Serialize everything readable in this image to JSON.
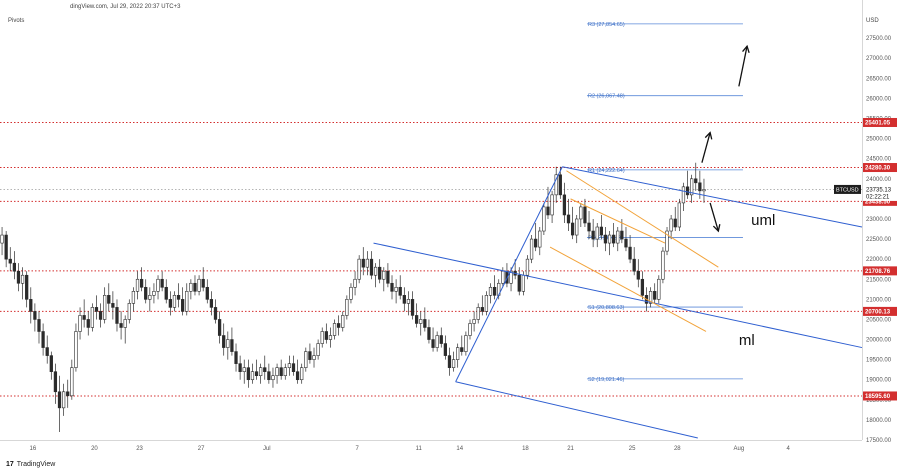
{
  "header": {
    "source": "dingView.com, Jul 29, 2022 20:37 UTC+3",
    "indicator": "Pivots",
    "currency": "USD"
  },
  "brand": {
    "logo": "17",
    "label": "TradingView"
  },
  "chart_data": {
    "type": "candlestick",
    "symbol": "BTCUSD",
    "last_price": "23735.13",
    "countdown": "02:22:21",
    "ylim": [
      17500,
      28250
    ],
    "y_ticks": [
      17500,
      18000,
      18500,
      19000,
      19500,
      20000,
      20500,
      21000,
      21500,
      22000,
      22500,
      23000,
      23500,
      24000,
      24500,
      25000,
      25500,
      26000,
      26500,
      27000,
      27500
    ],
    "y_tick_labels": [
      "17500.00",
      "18000.00",
      "18500.00",
      "19000.00",
      "19500.00",
      "20000.00",
      "20500.00",
      "21000.00",
      "21500.00",
      "22000.00",
      "22500.00",
      "23000.00",
      "23500.00",
      "24000.00",
      "24500.00",
      "25000.00",
      "25500.00",
      "26000.00",
      "26500.00",
      "27000.00",
      "27500.00"
    ],
    "xlim": [
      0,
      210
    ],
    "x_ticks": [
      {
        "i": 8,
        "label": "16"
      },
      {
        "i": 23,
        "label": "20"
      },
      {
        "i": 34,
        "label": "23"
      },
      {
        "i": 49,
        "label": "27"
      },
      {
        "i": 65,
        "label": "Jul"
      },
      {
        "i": 87,
        "label": "7"
      },
      {
        "i": 102,
        "label": "11"
      },
      {
        "i": 112,
        "label": "14"
      },
      {
        "i": 128,
        "label": "18"
      },
      {
        "i": 139,
        "label": "21"
      },
      {
        "i": 154,
        "label": "25"
      },
      {
        "i": 165,
        "label": "28"
      },
      {
        "i": 180,
        "label": "Aug"
      },
      {
        "i": 192,
        "label": "4"
      }
    ],
    "levels": [
      {
        "value": 25401.05,
        "label": "25401.05"
      },
      {
        "value": 24280.3,
        "label": "24280.30"
      },
      {
        "value": 23438.5,
        "label": "23438.50"
      },
      {
        "value": 21708.76,
        "label": "21708.76"
      },
      {
        "value": 20700.13,
        "label": "20700.13"
      },
      {
        "value": 18595.6,
        "label": "18595.60"
      }
    ],
    "pivots": [
      {
        "name": "R3",
        "label": "R3 (27,854.65)",
        "value": 27854.65
      },
      {
        "name": "R2",
        "label": "R2 (26,067.48)",
        "value": 26067.48
      },
      {
        "name": "R1",
        "label": "R1 (24,222.64)",
        "value": 24222.64
      },
      {
        "name": "P",
        "label": "P (22,540.19)",
        "value": 22540.19
      },
      {
        "name": "S1",
        "label": "S1 (20,808.63)",
        "value": 20808.63
      },
      {
        "name": "S2",
        "label": "S2 (19,021.46)",
        "value": 19021.46
      }
    ],
    "pivot_range": [
      143,
      181
    ],
    "pitchfork_blue": {
      "median": [
        [
          91,
          22400
        ],
        [
          210,
          19800
        ]
      ],
      "upper": [
        [
          137,
          24300
        ],
        [
          210,
          22800
        ]
      ],
      "lower": [
        [
          111,
          18950
        ],
        [
          170,
          17550
        ]
      ],
      "handle": [
        [
          111,
          18950
        ],
        [
          137,
          24300
        ]
      ]
    },
    "pitchfork_orange": {
      "upper": [
        [
          138,
          24200
        ],
        [
          175,
          21800
        ]
      ],
      "median": [
        [
          134,
          22300
        ],
        [
          172,
          20200
        ]
      ],
      "lower": [
        [
          139,
          23500
        ],
        [
          162,
          22400
        ]
      ]
    },
    "annotations": [
      {
        "text": "uml",
        "x": 183,
        "y": 22850
      },
      {
        "text": "ml",
        "x": 180,
        "y": 19870
      }
    ],
    "arrows": [
      {
        "from": [
          180,
          26300
        ],
        "to": [
          182,
          27300
        ]
      },
      {
        "from": [
          171,
          24400
        ],
        "to": [
          173,
          25150
        ]
      },
      {
        "from": [
          173,
          23400
        ],
        "to": [
          175,
          22700
        ]
      }
    ],
    "candles": [
      [
        22400,
        22800,
        22100,
        22600
      ],
      [
        22600,
        22700,
        21800,
        22000
      ],
      [
        22000,
        22300,
        21700,
        21900
      ],
      [
        21900,
        22200,
        21500,
        21700
      ],
      [
        21700,
        21900,
        21200,
        21400
      ],
      [
        21400,
        21800,
        21000,
        21600
      ],
      [
        21600,
        21700,
        20800,
        21000
      ],
      [
        21000,
        21300,
        20400,
        20700
      ],
      [
        20700,
        20900,
        20200,
        20500
      ],
      [
        20500,
        20700,
        19900,
        20200
      ],
      [
        20200,
        20400,
        19600,
        19800
      ],
      [
        19800,
        20100,
        19400,
        19600
      ],
      [
        19600,
        19700,
        19000,
        19200
      ],
      [
        19200,
        19400,
        18400,
        18700
      ],
      [
        18700,
        19100,
        17700,
        18300
      ],
      [
        18300,
        18900,
        18100,
        18700
      ],
      [
        18700,
        19000,
        18300,
        18600
      ],
      [
        18600,
        19500,
        18500,
        19300
      ],
      [
        19300,
        20400,
        19200,
        20200
      ],
      [
        20200,
        20800,
        20000,
        20600
      ],
      [
        20600,
        21000,
        20300,
        20500
      ],
      [
        20500,
        20700,
        20100,
        20300
      ],
      [
        20300,
        20900,
        20200,
        20800
      ],
      [
        20800,
        21100,
        20500,
        20700
      ],
      [
        20700,
        20900,
        20300,
        20500
      ],
      [
        20500,
        21300,
        20400,
        21100
      ],
      [
        21100,
        21400,
        20700,
        20900
      ],
      [
        20900,
        21200,
        20500,
        20800
      ],
      [
        20800,
        21000,
        20200,
        20400
      ],
      [
        20400,
        20700,
        20000,
        20300
      ],
      [
        20300,
        20600,
        19900,
        20500
      ],
      [
        20500,
        21000,
        20400,
        20900
      ],
      [
        20900,
        21300,
        20700,
        21200
      ],
      [
        21200,
        21700,
        21000,
        21500
      ],
      [
        21500,
        21800,
        21200,
        21300
      ],
      [
        21300,
        21500,
        20900,
        21000
      ],
      [
        21000,
        21300,
        20700,
        21100
      ],
      [
        21100,
        21400,
        20900,
        21200
      ],
      [
        21200,
        21600,
        21000,
        21500
      ],
      [
        21500,
        21700,
        21200,
        21300
      ],
      [
        21300,
        21500,
        20900,
        21000
      ],
      [
        21000,
        21200,
        20600,
        20800
      ],
      [
        20800,
        21200,
        20700,
        21100
      ],
      [
        21100,
        21400,
        20800,
        21000
      ],
      [
        21000,
        21300,
        20600,
        20700
      ],
      [
        20700,
        21400,
        20600,
        21200
      ],
      [
        21200,
        21500,
        21000,
        21400
      ],
      [
        21400,
        21600,
        21100,
        21200
      ],
      [
        21200,
        21600,
        21100,
        21500
      ],
      [
        21500,
        21800,
        21200,
        21300
      ],
      [
        21300,
        21500,
        20900,
        21000
      ],
      [
        21000,
        21200,
        20600,
        20800
      ],
      [
        20800,
        21000,
        20400,
        20500
      ],
      [
        20500,
        20700,
        19900,
        20100
      ],
      [
        20100,
        20400,
        19600,
        19800
      ],
      [
        19800,
        20200,
        19500,
        20000
      ],
      [
        20000,
        20300,
        19600,
        19700
      ],
      [
        19700,
        19900,
        19200,
        19400
      ],
      [
        19400,
        19600,
        19000,
        19200
      ],
      [
        19200,
        19500,
        18900,
        19300
      ],
      [
        19300,
        19500,
        18800,
        19000
      ],
      [
        19000,
        19400,
        18900,
        19200
      ],
      [
        19200,
        19500,
        19000,
        19100
      ],
      [
        19100,
        19400,
        18900,
        19300
      ],
      [
        19300,
        19600,
        19000,
        19200
      ],
      [
        19200,
        19400,
        18900,
        19000
      ],
      [
        19000,
        19300,
        18800,
        19100
      ],
      [
        19100,
        19400,
        18900,
        19300
      ],
      [
        19300,
        19500,
        19000,
        19100
      ],
      [
        19100,
        19400,
        19000,
        19300
      ],
      [
        19300,
        19600,
        19100,
        19400
      ],
      [
        19400,
        19600,
        19100,
        19200
      ],
      [
        19200,
        19500,
        18900,
        19000
      ],
      [
        19000,
        19400,
        18900,
        19300
      ],
      [
        19300,
        19800,
        19200,
        19700
      ],
      [
        19700,
        19900,
        19400,
        19500
      ],
      [
        19500,
        19800,
        19300,
        19600
      ],
      [
        19600,
        20000,
        19500,
        19900
      ],
      [
        19900,
        20300,
        19800,
        20200
      ],
      [
        20200,
        20400,
        19900,
        20000
      ],
      [
        20000,
        20300,
        19800,
        20100
      ],
      [
        20100,
        20500,
        20000,
        20400
      ],
      [
        20400,
        20600,
        20100,
        20300
      ],
      [
        20300,
        20700,
        20200,
        20600
      ],
      [
        20600,
        21100,
        20500,
        21000
      ],
      [
        21000,
        21400,
        20900,
        21300
      ],
      [
        21300,
        21700,
        21100,
        21500
      ],
      [
        21500,
        22100,
        21400,
        22000
      ],
      [
        22000,
        22300,
        21600,
        21800
      ],
      [
        21800,
        22200,
        21600,
        22000
      ],
      [
        22000,
        22200,
        21500,
        21600
      ],
      [
        21600,
        21900,
        21300,
        21800
      ],
      [
        21800,
        22000,
        21400,
        21500
      ],
      [
        21500,
        21800,
        21200,
        21700
      ],
      [
        21700,
        21900,
        21300,
        21400
      ],
      [
        21400,
        21600,
        21000,
        21200
      ],
      [
        21200,
        21500,
        20900,
        21300
      ],
      [
        21300,
        21600,
        21000,
        21100
      ],
      [
        21100,
        21300,
        20700,
        20900
      ],
      [
        20900,
        21200,
        20600,
        21000
      ],
      [
        21000,
        21200,
        20500,
        20600
      ],
      [
        20600,
        20900,
        20300,
        20400
      ],
      [
        20400,
        20700,
        20100,
        20500
      ],
      [
        20500,
        20800,
        20200,
        20300
      ],
      [
        20300,
        20500,
        19900,
        20000
      ],
      [
        20000,
        20300,
        19700,
        19800
      ],
      [
        19800,
        20200,
        19700,
        20100
      ],
      [
        20100,
        20300,
        19800,
        19900
      ],
      [
        19900,
        20100,
        19500,
        19600
      ],
      [
        19600,
        19800,
        19100,
        19300
      ],
      [
        19300,
        19700,
        19200,
        19500
      ],
      [
        19500,
        19900,
        19300,
        19800
      ],
      [
        19800,
        20100,
        19600,
        19700
      ],
      [
        19700,
        20200,
        19600,
        20100
      ],
      [
        20100,
        20500,
        20000,
        20400
      ],
      [
        20400,
        20700,
        20200,
        20500
      ],
      [
        20500,
        20900,
        20400,
        20800
      ],
      [
        20800,
        21100,
        20600,
        20700
      ],
      [
        20700,
        21200,
        20600,
        21100
      ],
      [
        21100,
        21400,
        20900,
        21300
      ],
      [
        21300,
        21600,
        21000,
        21100
      ],
      [
        21100,
        21500,
        21000,
        21400
      ],
      [
        21400,
        21800,
        21300,
        21700
      ],
      [
        21700,
        21900,
        21300,
        21400
      ],
      [
        21400,
        21800,
        21200,
        21700
      ],
      [
        21700,
        22000,
        21500,
        21600
      ],
      [
        21600,
        21800,
        21100,
        21200
      ],
      [
        21200,
        21700,
        21100,
        21600
      ],
      [
        21600,
        22100,
        21500,
        22000
      ],
      [
        22000,
        22600,
        21900,
        22500
      ],
      [
        22500,
        22900,
        22200,
        22300
      ],
      [
        22300,
        22800,
        22100,
        22700
      ],
      [
        22700,
        23400,
        22600,
        23300
      ],
      [
        23300,
        23800,
        23000,
        23100
      ],
      [
        23100,
        23700,
        22900,
        23600
      ],
      [
        23600,
        24300,
        23400,
        24100
      ],
      [
        24100,
        24300,
        23500,
        23600
      ],
      [
        23600,
        23900,
        22900,
        23100
      ],
      [
        23100,
        23500,
        22700,
        22900
      ],
      [
        22900,
        23300,
        22500,
        22600
      ],
      [
        22600,
        23100,
        22400,
        23000
      ],
      [
        23000,
        23400,
        22800,
        23300
      ],
      [
        23300,
        23500,
        22800,
        22900
      ],
      [
        22900,
        23200,
        22500,
        22700
      ],
      [
        22700,
        23000,
        22300,
        22500
      ],
      [
        22500,
        22900,
        22300,
        22800
      ],
      [
        22800,
        23100,
        22500,
        22600
      ],
      [
        22600,
        22800,
        22200,
        22400
      ],
      [
        22400,
        22700,
        22100,
        22600
      ],
      [
        22600,
        22900,
        22300,
        22400
      ],
      [
        22400,
        22800,
        22200,
        22700
      ],
      [
        22700,
        23000,
        22400,
        22500
      ],
      [
        22500,
        22800,
        22200,
        22300
      ],
      [
        22300,
        22600,
        21900,
        22000
      ],
      [
        22000,
        22300,
        21600,
        21700
      ],
      [
        21700,
        22000,
        21300,
        21500
      ],
      [
        21500,
        21700,
        21000,
        21100
      ],
      [
        21100,
        21300,
        20700,
        20900
      ],
      [
        20900,
        21300,
        20800,
        21200
      ],
      [
        21200,
        21400,
        20900,
        21000
      ],
      [
        21000,
        21600,
        20900,
        21500
      ],
      [
        21500,
        22300,
        21400,
        22200
      ],
      [
        22200,
        22800,
        22100,
        22700
      ],
      [
        22700,
        23100,
        22500,
        23000
      ],
      [
        23000,
        23300,
        22700,
        22800
      ],
      [
        22800,
        23500,
        22700,
        23400
      ],
      [
        23400,
        23900,
        23200,
        23800
      ],
      [
        23800,
        24200,
        23500,
        23600
      ],
      [
        23600,
        24100,
        23400,
        24000
      ],
      [
        24000,
        24400,
        23700,
        23900
      ],
      [
        23900,
        24200,
        23500,
        23700
      ],
      [
        23700,
        24000,
        23400,
        23735
      ]
    ]
  }
}
